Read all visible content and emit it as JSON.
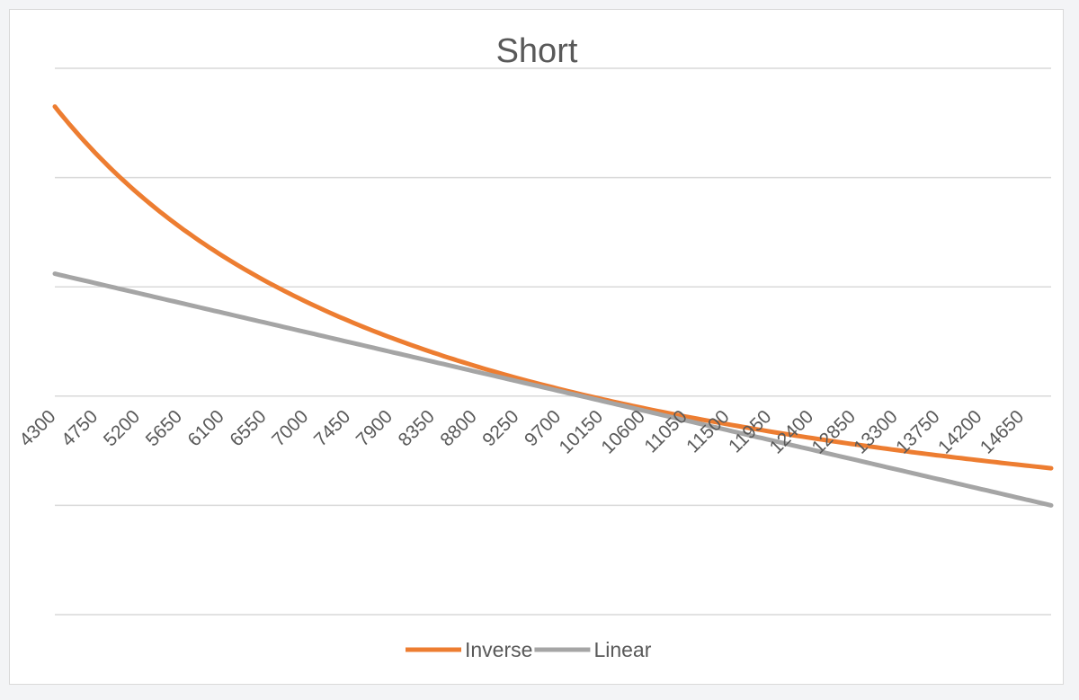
{
  "chart_data": {
    "type": "line",
    "title": "Short",
    "xlabel": "",
    "ylabel": "",
    "categories": [
      "4300",
      "4750",
      "5200",
      "5650",
      "6100",
      "6550",
      "7000",
      "7450",
      "7900",
      "8350",
      "8800",
      "9250",
      "9700",
      "10150",
      "10600",
      "11050",
      "11500",
      "11950",
      "12400",
      "12850",
      "13300",
      "13750",
      "14200",
      "14650"
    ],
    "x_range": [
      4300,
      14950
    ],
    "ylim": [
      -2,
      3
    ],
    "y_gridlines": [
      -2,
      -1,
      0,
      1,
      2,
      3
    ],
    "x_axis_crosses_y": 0,
    "grid": true,
    "legend": "bottom",
    "series": [
      {
        "name": "Inverse",
        "color": "#ed7d31",
        "curve": "inverse",
        "x_ref": 10000,
        "y_at_start": 2.65,
        "y_at_end": -0.66
      },
      {
        "name": "Linear",
        "color": "#a5a5a5",
        "curve": "linear",
        "y_at_start": 1.12,
        "y_at_end": -1.0
      }
    ]
  }
}
